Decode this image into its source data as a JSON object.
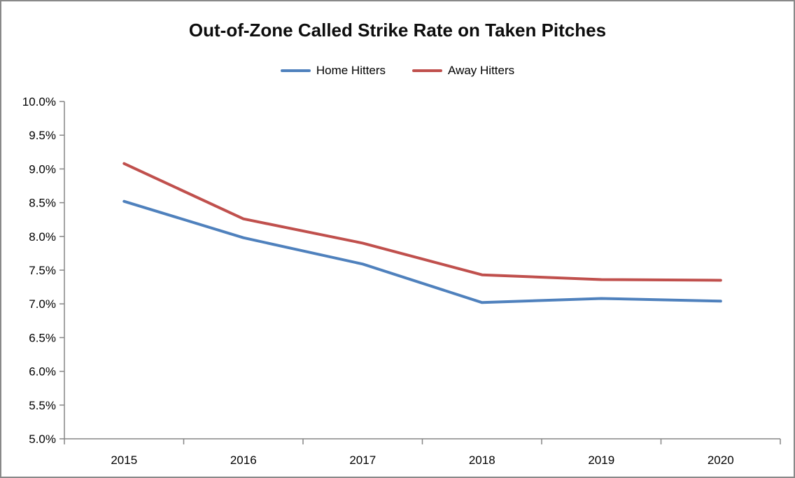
{
  "window": {
    "background": "#ffffff",
    "border_color": "#898989"
  },
  "chart_data": {
    "type": "line",
    "title": "Out-of-Zone Called Strike Rate on Taken Pitches",
    "categories": [
      "2015",
      "2016",
      "2017",
      "2018",
      "2019",
      "2020"
    ],
    "series": [
      {
        "name": "Home Hitters",
        "color": "#4F81BD",
        "values": [
          8.52,
          7.98,
          7.59,
          7.02,
          7.08,
          7.04
        ]
      },
      {
        "name": "Away Hitters",
        "color": "#C0504D",
        "values": [
          9.08,
          8.26,
          7.9,
          7.43,
          7.36,
          7.35
        ]
      }
    ],
    "xlabel": "",
    "ylabel": "",
    "ylim": [
      5.0,
      10.0
    ],
    "ytick_step": 0.5,
    "ytick_labels": [
      "5.0%",
      "5.5%",
      "6.0%",
      "6.5%",
      "7.0%",
      "7.5%",
      "8.0%",
      "8.5%",
      "9.0%",
      "9.5%",
      "10.0%"
    ],
    "grid": false,
    "legend_position": "top",
    "axis_color": "#868686"
  }
}
